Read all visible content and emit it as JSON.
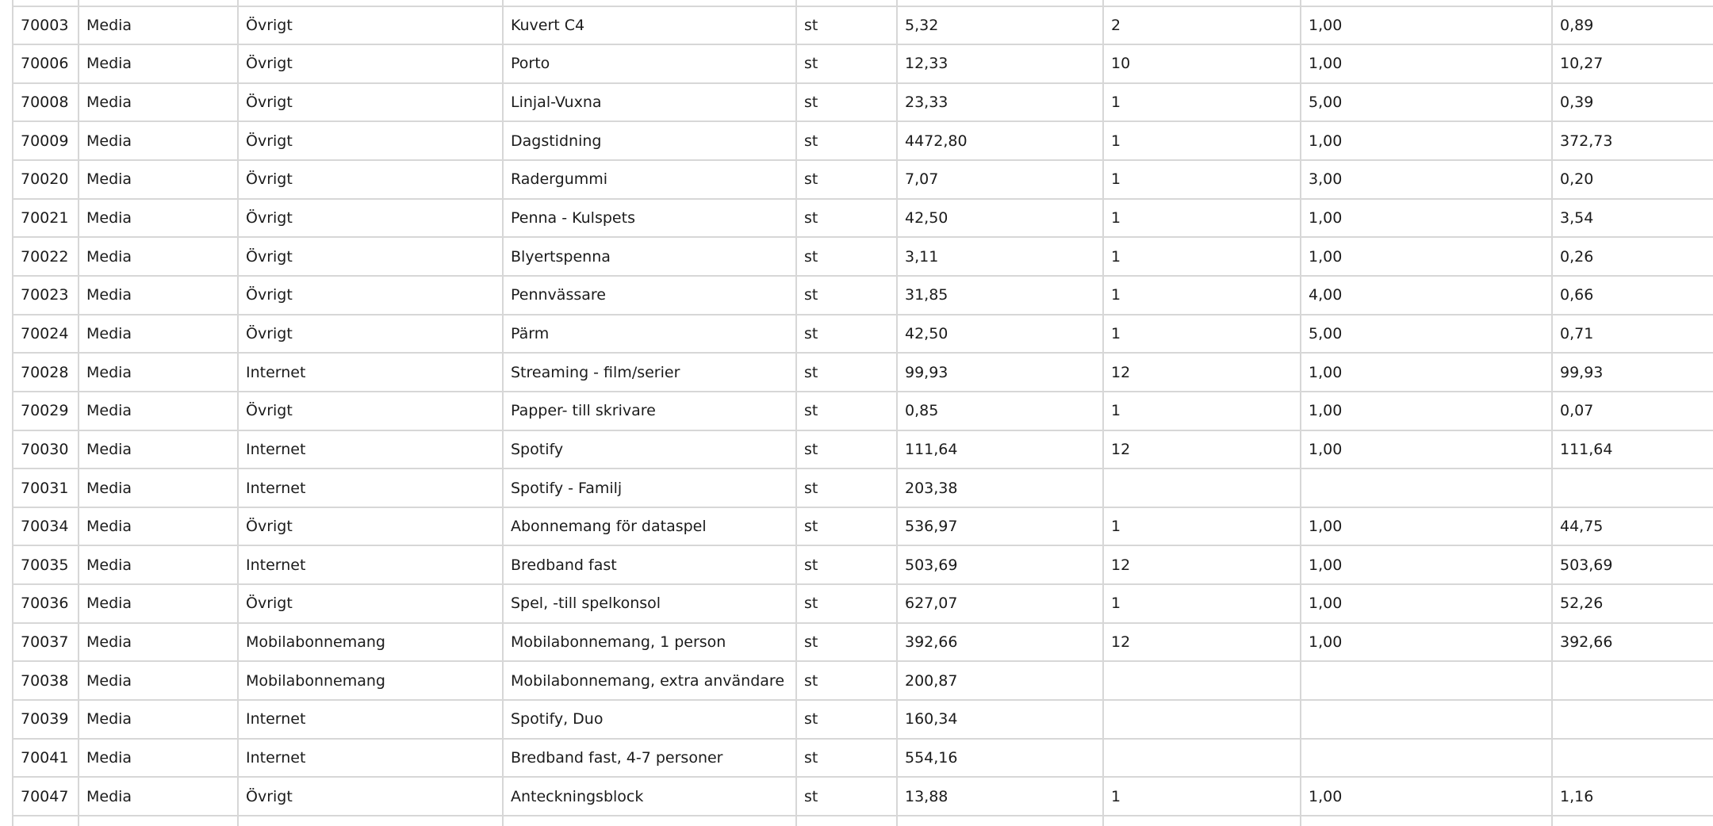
{
  "colors": {
    "border": "#d7d7d7",
    "text": "#1b1b1b",
    "background": "#ffffff"
  },
  "table": {
    "column_keys": [
      "id",
      "category",
      "subcategory",
      "product",
      "unit",
      "price",
      "quantity",
      "factor",
      "value"
    ],
    "rows": [
      [
        "70003",
        "Media",
        "Övrigt",
        "Kuvert C4",
        "st",
        "5,32",
        "2",
        "1,00",
        "0,89"
      ],
      [
        "70006",
        "Media",
        "Övrigt",
        "Porto",
        "st",
        "12,33",
        "10",
        "1,00",
        "10,27"
      ],
      [
        "70008",
        "Media",
        "Övrigt",
        "Linjal-Vuxna",
        "st",
        "23,33",
        "1",
        "5,00",
        "0,39"
      ],
      [
        "70009",
        "Media",
        "Övrigt",
        "Dagstidning",
        "st",
        "4472,80",
        "1",
        "1,00",
        "372,73"
      ],
      [
        "70020",
        "Media",
        "Övrigt",
        "Radergummi",
        "st",
        "7,07",
        "1",
        "3,00",
        "0,20"
      ],
      [
        "70021",
        "Media",
        "Övrigt",
        "Penna - Kulspets",
        "st",
        "42,50",
        "1",
        "1,00",
        "3,54"
      ],
      [
        "70022",
        "Media",
        "Övrigt",
        "Blyertspenna",
        "st",
        "3,11",
        "1",
        "1,00",
        "0,26"
      ],
      [
        "70023",
        "Media",
        "Övrigt",
        "Pennvässare",
        "st",
        "31,85",
        "1",
        "4,00",
        "0,66"
      ],
      [
        "70024",
        "Media",
        "Övrigt",
        "Pärm",
        "st",
        "42,50",
        "1",
        "5,00",
        "0,71"
      ],
      [
        "70028",
        "Media",
        "Internet",
        "Streaming - film/serier",
        "st",
        "99,93",
        "12",
        "1,00",
        "99,93"
      ],
      [
        "70029",
        "Media",
        "Övrigt",
        "Papper- till skrivare",
        "st",
        "0,85",
        "1",
        "1,00",
        "0,07"
      ],
      [
        "70030",
        "Media",
        "Internet",
        "Spotify",
        "st",
        "111,64",
        "12",
        "1,00",
        "111,64"
      ],
      [
        "70031",
        "Media",
        "Internet",
        "Spotify - Familj",
        "st",
        "203,38",
        "",
        "",
        ""
      ],
      [
        "70034",
        "Media",
        "Övrigt",
        "Abonnemang för dataspel",
        "st",
        "536,97",
        "1",
        "1,00",
        "44,75"
      ],
      [
        "70035",
        "Media",
        "Internet",
        "Bredband fast",
        "st",
        "503,69",
        "12",
        "1,00",
        "503,69"
      ],
      [
        "70036",
        "Media",
        "Övrigt",
        "Spel, -till spelkonsol",
        "st",
        "627,07",
        "1",
        "1,00",
        "52,26"
      ],
      [
        "70037",
        "Media",
        "Mobilabonnemang",
        "Mobilabonnemang, 1 person",
        "st",
        "392,66",
        "12",
        "1,00",
        "392,66"
      ],
      [
        "70038",
        "Media",
        "Mobilabonnemang",
        "Mobilabonnemang, extra användare",
        "st",
        "200,87",
        "",
        "",
        ""
      ],
      [
        "70039",
        "Media",
        "Internet",
        "Spotify, Duo",
        "st",
        "160,34",
        "",
        "",
        ""
      ],
      [
        "70041",
        "Media",
        "Internet",
        "Bredband fast, 4-7 personer",
        "st",
        "554,16",
        "",
        "",
        ""
      ],
      [
        "70047",
        "Media",
        "Övrigt",
        "Anteckningsblock",
        "st",
        "13,88",
        "1",
        "1,00",
        "1,16"
      ]
    ]
  }
}
